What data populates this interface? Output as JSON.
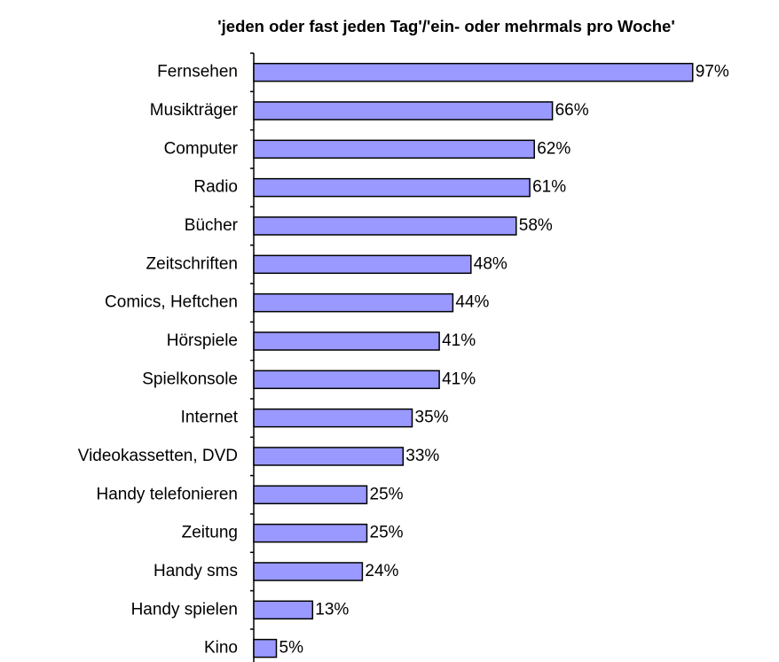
{
  "chart_data": {
    "type": "hbar",
    "title": "'jeden oder fast jeden Tag'/'ein- oder mehrmals pro Woche'",
    "categories": [
      "Fernsehen",
      "Musikträger",
      "Computer",
      "Radio",
      "Bücher",
      "Zeitschriften",
      "Comics, Heftchen",
      "Hörspiele",
      "Spielkonsole",
      "Internet",
      "Videokassetten, DVD",
      "Handy telefonieren",
      "Zeitung",
      "Handy sms",
      "Handy spielen",
      "Kino"
    ],
    "values": [
      97,
      66,
      62,
      61,
      58,
      48,
      44,
      41,
      41,
      35,
      33,
      25,
      25,
      24,
      13,
      5
    ],
    "value_labels": [
      "97%",
      "66%",
      "62%",
      "61%",
      "58%",
      "48%",
      "44%",
      "41%",
      "41%",
      "35%",
      "33%",
      "25%",
      "25%",
      "24%",
      "13%",
      "5%"
    ],
    "color": "#9999ff"
  }
}
